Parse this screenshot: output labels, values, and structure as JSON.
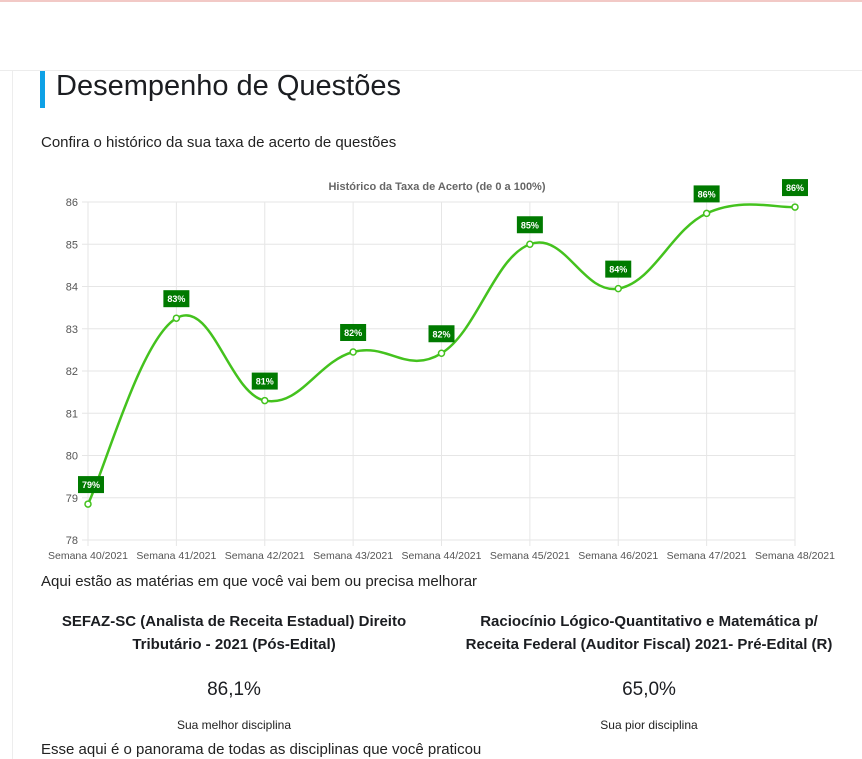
{
  "page": {
    "title": "Desempenho de Questões",
    "subtitle": "Confira o histórico da sua taxa de acerto de questões",
    "accent_color": "#0ea1e6"
  },
  "chart_data": {
    "type": "line",
    "title": "Histórico da Taxa de Acerto (de 0 a 100%)",
    "xlabel": "",
    "ylabel": "",
    "categories": [
      "Semana 40/2021",
      "Semana 41/2021",
      "Semana 42/2021",
      "Semana 43/2021",
      "Semana 44/2021",
      "Semana 45/2021",
      "Semana 46/2021",
      "Semana 47/2021",
      "Semana 48/2021"
    ],
    "values": [
      78.85,
      83.25,
      81.3,
      82.45,
      82.42,
      85.0,
      83.95,
      85.73,
      85.88
    ],
    "data_labels": [
      "79%",
      "83%",
      "81%",
      "82%",
      "82%",
      "85%",
      "84%",
      "86%",
      "86%"
    ],
    "ylim": [
      78,
      86
    ],
    "yticks": [
      78,
      79,
      80,
      81,
      82,
      83,
      84,
      85,
      86
    ],
    "grid": true,
    "line_color": "#44c21e",
    "label_bg_color": "#007a00"
  },
  "disciplines": {
    "intro": "Aqui estão as matérias em que você vai bem ou precisa melhorar",
    "best": {
      "name_line1": "SEFAZ-SC (Analista de Receita Estadual) Direito",
      "name_line2": "Tributário - 2021 (Pós-Edital)",
      "value": "86,1%",
      "caption": "Sua melhor disciplina"
    },
    "worst": {
      "name_line1": "Raciocínio Lógico-Quantitativo e Matemática p/",
      "name_line2": "Receita Federal (Auditor Fiscal) 2021- Pré-Edital (R)",
      "value": "65,0%",
      "caption": "Sua pior disciplina"
    }
  },
  "panorama": {
    "text": "Esse aqui é o panorama de todas as disciplinas que você praticou"
  }
}
